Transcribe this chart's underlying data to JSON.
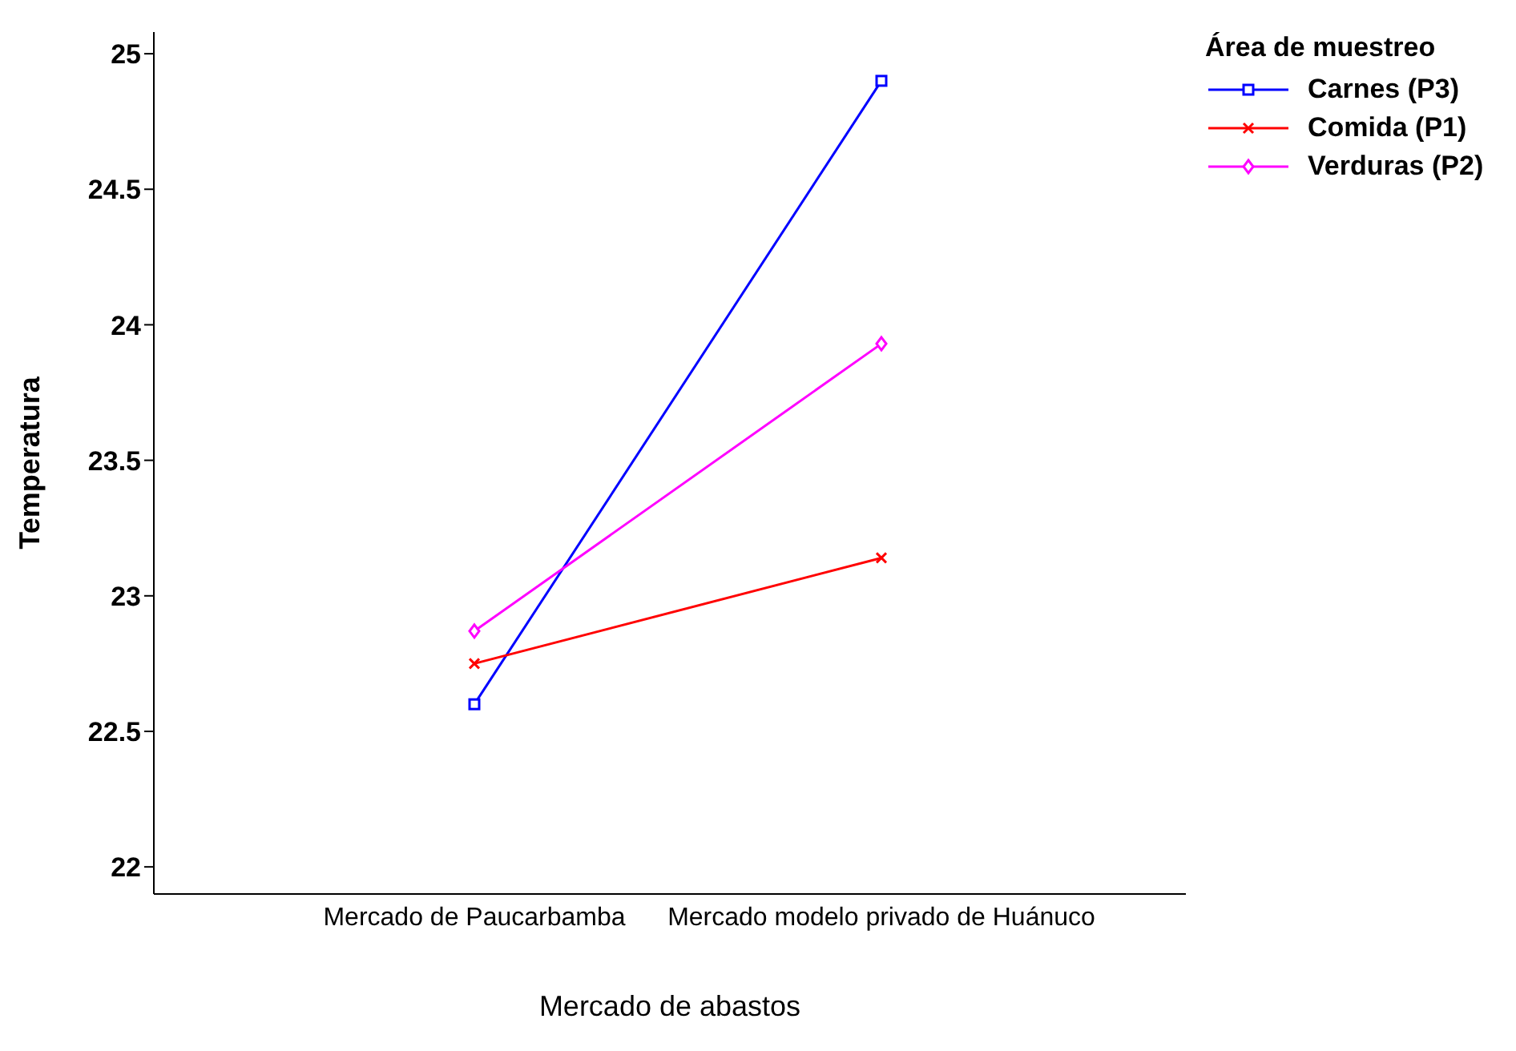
{
  "chart_data": {
    "type": "line",
    "xlabel": "Mercado de abastos",
    "ylabel": "Temperatura",
    "legend_title": "Área de muestreo",
    "categories": [
      "Mercado de Paucarbamba",
      "Mercado modelo privado de Huánuco"
    ],
    "series": [
      {
        "name": "Carnes (P3)",
        "color": "#0000ff",
        "marker": "square",
        "values": [
          22.6,
          24.9
        ]
      },
      {
        "name": "Comida (P1)",
        "color": "#ff0000",
        "marker": "cross",
        "values": [
          22.75,
          23.14
        ]
      },
      {
        "name": "Verduras (P2)",
        "color": "#ff00ff",
        "marker": "diamond",
        "values": [
          22.87,
          23.93
        ]
      }
    ],
    "ylim": [
      21.9,
      25.08
    ],
    "yticks": [
      22,
      22.5,
      23,
      23.5,
      24,
      24.5,
      25
    ],
    "grid": false,
    "legend": "top right"
  }
}
